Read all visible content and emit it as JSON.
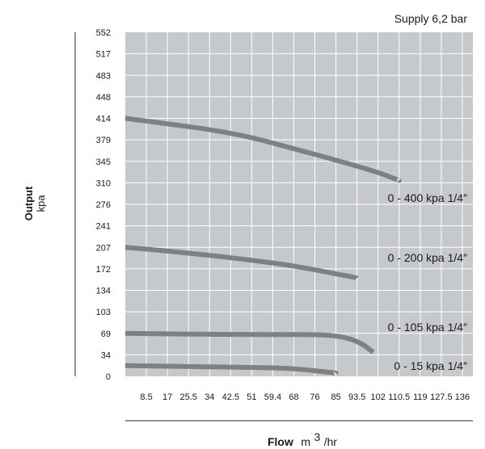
{
  "chart_data": {
    "type": "line",
    "subtitle": "Supply 6,2 bar",
    "ylabel": "Output",
    "ylabel_unit": "kpa",
    "xlabel": "Flow",
    "xlabel_unit": "m",
    "xlabel_unit_sup": "3",
    "xlabel_unit_tail": "/hr",
    "y_ticks": [
      "0",
      "34",
      "69",
      "103",
      "134",
      "172",
      "207",
      "241",
      "276",
      "310",
      "345",
      "379",
      "414",
      "448",
      "483",
      "517",
      "552"
    ],
    "x_ticks": [
      "8.5",
      "17",
      "25.5",
      "34",
      "42.5",
      "51",
      "59.4",
      "68",
      "76",
      "85",
      "93.5",
      "102",
      "110.5",
      "119",
      "127.5",
      "136"
    ],
    "grid": true,
    "plot_background": "#c5c9cc",
    "line_color": "#7d8184",
    "series": [
      {
        "name": "0 - 400 kpa 1/4″",
        "x": [
          0,
          17,
          34,
          51,
          68,
          85,
          102,
          110.5
        ],
        "y": [
          414,
          405,
          396,
          383,
          365,
          347,
          327,
          314
        ]
      },
      {
        "name": "0 - 200 kpa 1/4″",
        "x": [
          0,
          17,
          34,
          51,
          68,
          85,
          93.5
        ],
        "y": [
          207,
          201,
          194,
          186,
          177,
          163,
          156
        ]
      },
      {
        "name": "0 - 105 kpa 1/4″",
        "x": [
          0,
          17,
          34,
          51,
          68,
          76,
          82,
          88,
          93,
          97,
          100
        ],
        "y": [
          69,
          68,
          67.5,
          67,
          67,
          67,
          66,
          63,
          57,
          48,
          38
        ]
      },
      {
        "name": "0 - 15 kpa 1/4″",
        "x": [
          0,
          17,
          34,
          51,
          59.4,
          68,
          76,
          85
        ],
        "y": [
          17,
          16,
          15,
          14,
          13.5,
          12,
          9,
          5
        ]
      }
    ]
  }
}
